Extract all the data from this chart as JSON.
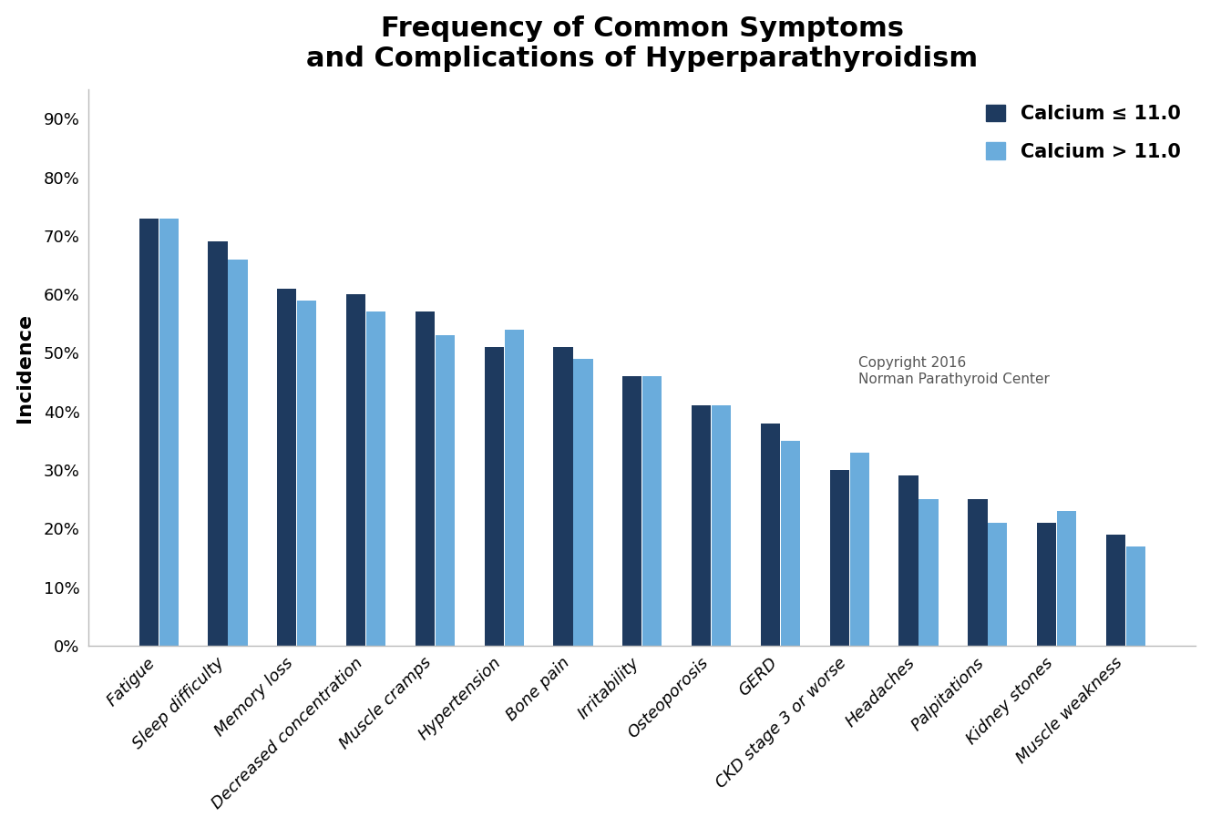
{
  "title": "Frequency of Common Symptoms\nand Complications of Hyperparathyroidism",
  "ylabel": "Incidence",
  "categories": [
    "Fatigue",
    "Sleep difficulty",
    "Memory loss",
    "Decreased concentration",
    "Muscle cramps",
    "Hypertension",
    "Bone pain",
    "Irritability",
    "Osteoporosis",
    "GERD",
    "CKD stage 3 or worse",
    "Headaches",
    "Palpitations",
    "Kidney stones",
    "Muscle weakness"
  ],
  "series1_label": "Calcium ≤ 11.0",
  "series2_label": "Calcium > 11.0",
  "series1_values": [
    73,
    69,
    61,
    60,
    57,
    51,
    51,
    46,
    41,
    38,
    30,
    29,
    25,
    21,
    19
  ],
  "series2_values": [
    73,
    66,
    59,
    57,
    53,
    54,
    49,
    46,
    41,
    35,
    33,
    25,
    21,
    23,
    17
  ],
  "color_dark": "#1e3a5f",
  "color_light": "#6aacdc",
  "ytick_labels": [
    "0%",
    "10%",
    "20%",
    "30%",
    "40%",
    "50%",
    "60%",
    "70%",
    "80%",
    "90%"
  ],
  "ytick_values": [
    0,
    10,
    20,
    30,
    40,
    50,
    60,
    70,
    80,
    90
  ],
  "ylim": [
    0,
    95
  ],
  "copyright_text": "Copyright 2016\nNorman Parathyroid Center",
  "title_fontsize": 22,
  "axis_label_fontsize": 16,
  "tick_fontsize": 13,
  "legend_fontsize": 15,
  "copyright_fontsize": 11,
  "background_color": "#ffffff",
  "bar_width": 0.28,
  "bar_gap": 0.01
}
